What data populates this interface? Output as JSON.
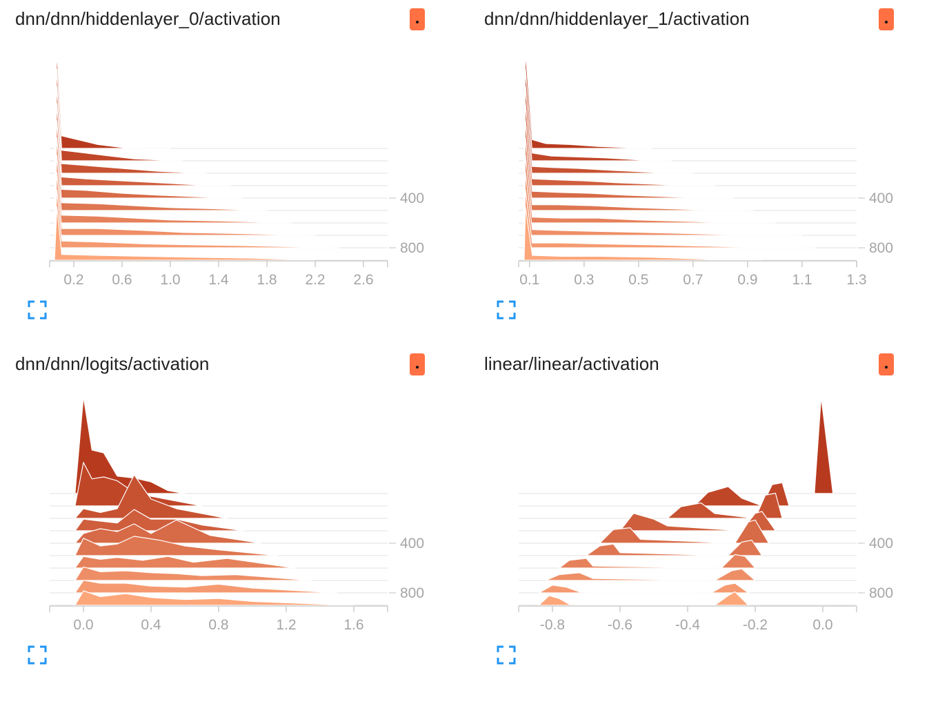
{
  "cards": [
    {
      "title": "dnn/dnn/hiddenlayer_0/activation",
      "badge_color": "#ff7043",
      "expand_icon": "fullscreen-icon"
    },
    {
      "title": "dnn/dnn/hiddenlayer_1/activation",
      "badge_color": "#ff7043",
      "expand_icon": "fullscreen-icon"
    },
    {
      "title": "dnn/dnn/logits/activation",
      "badge_color": "#ff7043",
      "expand_icon": "fullscreen-icon"
    },
    {
      "title": "linear/linear/activation",
      "badge_color": "#ff7043",
      "expand_icon": "fullscreen-icon"
    }
  ],
  "chart_data": [
    {
      "type": "area",
      "title": "dnn/dnn/hiddenlayer_0/activation",
      "xlim": [
        0.0,
        2.8
      ],
      "x_ticks": [
        "0.2",
        "0.6",
        "1.0",
        "1.4",
        "1.8",
        "2.2",
        "2.6"
      ],
      "x_tick_values": [
        0.2,
        0.6,
        1.0,
        1.4,
        1.8,
        2.2,
        2.6
      ],
      "y_ticks": [
        "400",
        "800"
      ],
      "y_tick_values": [
        400,
        800
      ],
      "step_range": [
        0,
        900
      ],
      "color_oldest": "#b83a1e",
      "color_newest": "#fda67a",
      "series": [
        {
          "step": 0,
          "x": [
            0.04,
            0.06,
            0.1,
            0.2,
            0.4,
            0.6,
            0.8,
            1.0
          ],
          "y": [
            0,
            1.0,
            0.13,
            0.1,
            0.04,
            0.01,
            0,
            0
          ]
        },
        {
          "step": 100,
          "x": [
            0.04,
            0.06,
            0.1,
            0.3,
            0.5,
            0.7,
            0.9,
            1.1
          ],
          "y": [
            0,
            0.95,
            0.11,
            0.08,
            0.05,
            0.02,
            0.01,
            0
          ]
        },
        {
          "step": 200,
          "x": [
            0.04,
            0.06,
            0.1,
            0.3,
            0.6,
            0.9,
            1.1,
            1.3
          ],
          "y": [
            0,
            0.9,
            0.1,
            0.08,
            0.05,
            0.02,
            0.01,
            0
          ]
        },
        {
          "step": 300,
          "x": [
            0.04,
            0.06,
            0.1,
            0.3,
            0.6,
            0.9,
            1.2,
            1.5
          ],
          "y": [
            0,
            0.85,
            0.09,
            0.07,
            0.05,
            0.03,
            0.01,
            0
          ]
        },
        {
          "step": 400,
          "x": [
            0.04,
            0.06,
            0.1,
            0.3,
            0.6,
            0.9,
            1.3,
            1.6
          ],
          "y": [
            0,
            0.8,
            0.09,
            0.08,
            0.05,
            0.03,
            0.01,
            0
          ]
        },
        {
          "step": 500,
          "x": [
            0.04,
            0.06,
            0.1,
            0.4,
            0.7,
            1.0,
            1.3,
            1.8
          ],
          "y": [
            0,
            0.75,
            0.08,
            0.07,
            0.05,
            0.03,
            0.02,
            0
          ]
        },
        {
          "step": 600,
          "x": [
            0.04,
            0.06,
            0.1,
            0.4,
            0.7,
            1.0,
            1.4,
            2.0
          ],
          "y": [
            0,
            0.7,
            0.08,
            0.07,
            0.05,
            0.03,
            0.02,
            0
          ]
        },
        {
          "step": 700,
          "x": [
            0.04,
            0.06,
            0.1,
            0.4,
            0.8,
            1.1,
            1.5,
            2.2
          ],
          "y": [
            0,
            0.65,
            0.07,
            0.07,
            0.05,
            0.03,
            0.02,
            0
          ]
        },
        {
          "step": 800,
          "x": [
            0.04,
            0.06,
            0.1,
            0.4,
            0.8,
            1.2,
            1.7,
            2.4
          ],
          "y": [
            0,
            0.6,
            0.07,
            0.06,
            0.04,
            0.03,
            0.02,
            0
          ]
        },
        {
          "step": 900,
          "x": [
            0.04,
            0.06,
            0.1,
            0.4,
            0.8,
            1.2,
            1.7,
            2.2
          ],
          "y": [
            0,
            0.55,
            0.06,
            0.05,
            0.04,
            0.03,
            0.02,
            0
          ]
        }
      ]
    },
    {
      "type": "area",
      "title": "dnn/dnn/hiddenlayer_1/activation",
      "xlim": [
        0.06,
        1.3
      ],
      "x_ticks": [
        "0.1",
        "0.3",
        "0.5",
        "0.7",
        "0.9",
        "1.1",
        "1.3"
      ],
      "x_tick_values": [
        0.1,
        0.3,
        0.5,
        0.7,
        0.9,
        1.1,
        1.3
      ],
      "y_ticks": [
        "400",
        "800"
      ],
      "y_tick_values": [
        400,
        800
      ],
      "step_range": [
        0,
        900
      ],
      "color_oldest": "#b83a1e",
      "color_newest": "#fda67a",
      "series": [
        {
          "step": 0,
          "x": [
            0.08,
            0.085,
            0.11,
            0.16,
            0.25,
            0.35,
            0.45,
            0.55
          ],
          "y": [
            0,
            1.0,
            0.09,
            0.05,
            0.04,
            0.02,
            0.01,
            0
          ]
        },
        {
          "step": 100,
          "x": [
            0.08,
            0.085,
            0.11,
            0.18,
            0.28,
            0.38,
            0.5,
            0.62
          ],
          "y": [
            0,
            0.95,
            0.08,
            0.05,
            0.04,
            0.03,
            0.01,
            0
          ]
        },
        {
          "step": 200,
          "x": [
            0.08,
            0.085,
            0.11,
            0.18,
            0.28,
            0.4,
            0.55,
            0.7
          ],
          "y": [
            0,
            0.9,
            0.07,
            0.06,
            0.05,
            0.03,
            0.01,
            0
          ]
        },
        {
          "step": 300,
          "x": [
            0.08,
            0.085,
            0.11,
            0.2,
            0.3,
            0.42,
            0.6,
            0.78
          ],
          "y": [
            0,
            0.85,
            0.07,
            0.06,
            0.05,
            0.03,
            0.01,
            0
          ]
        },
        {
          "step": 400,
          "x": [
            0.08,
            0.085,
            0.11,
            0.2,
            0.32,
            0.45,
            0.65,
            0.85
          ],
          "y": [
            0,
            0.8,
            0.07,
            0.06,
            0.05,
            0.03,
            0.01,
            0
          ]
        },
        {
          "step": 500,
          "x": [
            0.08,
            0.085,
            0.11,
            0.2,
            0.33,
            0.48,
            0.7,
            0.92
          ],
          "y": [
            0,
            0.75,
            0.06,
            0.06,
            0.05,
            0.03,
            0.01,
            0
          ]
        },
        {
          "step": 600,
          "x": [
            0.08,
            0.085,
            0.11,
            0.22,
            0.35,
            0.5,
            0.75,
            1.0
          ],
          "y": [
            0,
            0.7,
            0.06,
            0.05,
            0.05,
            0.03,
            0.01,
            0
          ]
        },
        {
          "step": 700,
          "x": [
            0.08,
            0.085,
            0.11,
            0.22,
            0.36,
            0.52,
            0.8,
            1.1
          ],
          "y": [
            0,
            0.65,
            0.06,
            0.05,
            0.04,
            0.03,
            0.01,
            0
          ]
        },
        {
          "step": 800,
          "x": [
            0.08,
            0.085,
            0.11,
            0.22,
            0.36,
            0.55,
            0.85,
            1.15
          ],
          "y": [
            0,
            0.6,
            0.05,
            0.05,
            0.04,
            0.03,
            0.01,
            0
          ]
        },
        {
          "step": 900,
          "x": [
            0.08,
            0.085,
            0.11,
            0.22,
            0.36,
            0.55,
            0.75,
            0.95
          ],
          "y": [
            0,
            0.55,
            0.05,
            0.04,
            0.04,
            0.03,
            0.01,
            0
          ]
        }
      ]
    },
    {
      "type": "area",
      "title": "dnn/dnn/logits/activation",
      "xlim": [
        -0.2,
        1.8
      ],
      "x_ticks": [
        "0.0",
        "0.4",
        "0.8",
        "1.2",
        "1.6"
      ],
      "x_tick_values": [
        0.0,
        0.4,
        0.8,
        1.2,
        1.6
      ],
      "y_ticks": [
        "400",
        "800"
      ],
      "y_tick_values": [
        400,
        800
      ],
      "step_range": [
        0,
        900
      ],
      "color_oldest": "#b83a1e",
      "color_newest": "#fda67a",
      "series": [
        {
          "step": 0,
          "x": [
            -0.05,
            0.0,
            0.05,
            0.12,
            0.2,
            0.3,
            0.4,
            0.5,
            0.6
          ],
          "y": [
            0,
            1.0,
            0.45,
            0.42,
            0.18,
            0.16,
            0.12,
            0.03,
            0
          ]
        },
        {
          "step": 100,
          "x": [
            -0.05,
            0.0,
            0.05,
            0.12,
            0.2,
            0.3,
            0.4,
            0.55,
            0.7
          ],
          "y": [
            0,
            0.45,
            0.28,
            0.3,
            0.26,
            0.14,
            0.1,
            0.05,
            0
          ]
        },
        {
          "step": 200,
          "x": [
            -0.05,
            0.0,
            0.1,
            0.2,
            0.3,
            0.4,
            0.55,
            0.7,
            0.85
          ],
          "y": [
            0,
            0.1,
            0.06,
            0.1,
            0.45,
            0.2,
            0.1,
            0.05,
            0
          ]
        },
        {
          "step": 300,
          "x": [
            -0.05,
            0.0,
            0.1,
            0.2,
            0.3,
            0.4,
            0.55,
            0.7,
            0.95
          ],
          "y": [
            0,
            0.12,
            0.1,
            0.08,
            0.22,
            0.12,
            0.12,
            0.06,
            0
          ]
        },
        {
          "step": 400,
          "x": [
            -0.05,
            0.0,
            0.1,
            0.2,
            0.3,
            0.4,
            0.55,
            0.75,
            1.05
          ],
          "y": [
            0,
            0.1,
            0.15,
            0.12,
            0.2,
            0.1,
            0.24,
            0.08,
            0
          ]
        },
        {
          "step": 500,
          "x": [
            -0.05,
            0.0,
            0.1,
            0.2,
            0.3,
            0.45,
            0.6,
            0.8,
            1.15
          ],
          "y": [
            0,
            0.18,
            0.1,
            0.12,
            0.2,
            0.16,
            0.1,
            0.06,
            0
          ]
        },
        {
          "step": 600,
          "x": [
            -0.05,
            0.0,
            0.1,
            0.2,
            0.35,
            0.5,
            0.65,
            0.85,
            1.25
          ],
          "y": [
            0,
            0.12,
            0.09,
            0.11,
            0.08,
            0.12,
            0.06,
            0.1,
            0
          ]
        },
        {
          "step": 700,
          "x": [
            -0.05,
            0.0,
            0.1,
            0.25,
            0.4,
            0.55,
            0.7,
            0.9,
            1.35
          ],
          "y": [
            0,
            0.14,
            0.09,
            0.1,
            0.08,
            0.07,
            0.05,
            0.06,
            0
          ]
        },
        {
          "step": 800,
          "x": [
            -0.05,
            0.0,
            0.1,
            0.25,
            0.4,
            0.6,
            0.8,
            1.0,
            1.5
          ],
          "y": [
            0,
            0.13,
            0.1,
            0.1,
            0.07,
            0.06,
            0.09,
            0.05,
            0
          ]
        },
        {
          "step": 900,
          "x": [
            -0.05,
            0.0,
            0.1,
            0.25,
            0.4,
            0.6,
            0.8,
            1.0,
            1.6
          ],
          "y": [
            0,
            0.15,
            0.09,
            0.12,
            0.08,
            0.06,
            0.07,
            0.04,
            0
          ]
        }
      ]
    },
    {
      "type": "area",
      "title": "linear/linear/activation",
      "xlim": [
        -0.9,
        0.1
      ],
      "x_ticks": [
        "-0.8",
        "-0.6",
        "-0.4",
        "-0.2",
        "0.0"
      ],
      "x_tick_values": [
        -0.8,
        -0.6,
        -0.4,
        -0.2,
        0.0
      ],
      "y_ticks": [
        "400",
        "800"
      ],
      "y_tick_values": [
        400,
        800
      ],
      "step_range": [
        0,
        900
      ],
      "color_oldest": "#b83a1e",
      "color_newest": "#fda67a",
      "series": [
        {
          "step": 0,
          "x": [
            -0.025,
            -0.005,
            0.03
          ],
          "y": [
            0,
            1.0,
            0
          ]
        },
        {
          "step": 100,
          "x": [
            -0.38,
            -0.34,
            -0.28,
            -0.24,
            -0.18,
            -0.15,
            -0.12,
            -0.1
          ],
          "y": [
            0,
            0.14,
            0.2,
            0.08,
            0,
            0.22,
            0.24,
            0
          ]
        },
        {
          "step": 200,
          "x": [
            -0.46,
            -0.42,
            -0.36,
            -0.32,
            -0.2,
            -0.17,
            -0.14,
            -0.12
          ],
          "y": [
            0,
            0.12,
            0.16,
            0.05,
            0,
            0.24,
            0.26,
            0
          ]
        },
        {
          "step": 300,
          "x": [
            -0.6,
            -0.56,
            -0.5,
            -0.46,
            -0.24,
            -0.2,
            -0.18,
            -0.14
          ],
          "y": [
            0,
            0.18,
            0.12,
            0.05,
            0,
            0.18,
            0.2,
            0
          ]
        },
        {
          "step": 400,
          "x": [
            -0.66,
            -0.62,
            -0.57,
            -0.54,
            -0.26,
            -0.22,
            -0.2,
            -0.16
          ],
          "y": [
            0,
            0.14,
            0.16,
            0.04,
            0,
            0.22,
            0.24,
            0
          ]
        },
        {
          "step": 500,
          "x": [
            -0.7,
            -0.66,
            -0.62,
            -0.6,
            -0.28,
            -0.24,
            -0.21,
            -0.18
          ],
          "y": [
            0,
            0.1,
            0.12,
            0.03,
            0,
            0.14,
            0.16,
            0
          ]
        },
        {
          "step": 600,
          "x": [
            -0.78,
            -0.75,
            -0.7,
            -0.68,
            -0.3,
            -0.26,
            -0.23,
            -0.2
          ],
          "y": [
            0,
            0.08,
            0.1,
            0.02,
            0,
            0.14,
            0.12,
            0
          ]
        },
        {
          "step": 700,
          "x": [
            -0.82,
            -0.78,
            -0.72,
            -0.68,
            -0.32,
            -0.27,
            -0.24,
            -0.2
          ],
          "y": [
            0,
            0.06,
            0.08,
            0.02,
            0,
            0.1,
            0.12,
            0
          ]
        },
        {
          "step": 800,
          "x": [
            -0.84,
            -0.8,
            -0.76,
            -0.72,
            -0.33,
            -0.29,
            -0.26,
            -0.22
          ],
          "y": [
            0,
            0.08,
            0.06,
            0.01,
            0,
            0.08,
            0.1,
            0
          ]
        },
        {
          "step": 900,
          "x": [
            -0.84,
            -0.81,
            -0.78,
            -0.75,
            -0.32,
            -0.28,
            -0.26,
            -0.22
          ],
          "y": [
            0,
            0.1,
            0.07,
            0.01,
            0,
            0.1,
            0.14,
            0
          ]
        }
      ]
    }
  ]
}
